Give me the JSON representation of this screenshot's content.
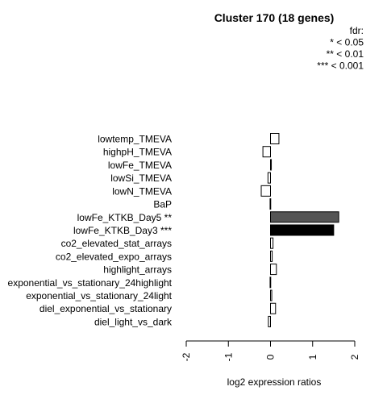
{
  "chart_data": {
    "type": "bar",
    "orientation": "horizontal",
    "title": "Cluster 170 (18 genes)",
    "xlabel": "log2 expression ratios",
    "ylabel": "",
    "xlim": [
      -2,
      2
    ],
    "xticks": [
      -2,
      -1,
      0,
      1,
      2
    ],
    "grid": false,
    "legend": {
      "placement": "top-right",
      "entries": [
        "fdr:",
        "* < 0.05",
        "** < 0.01",
        "*** < 0.001"
      ]
    },
    "categories": [
      "lowtemp_TMEVA",
      "highpH_TMEVA",
      "lowFe_TMEVA",
      "lowSi_TMEVA",
      "lowN_TMEVA",
      "BaP",
      "lowFe_KTKB_Day5 **",
      "lowFe_KTKB_Day3 ***",
      "co2_elevated_stat_arrays",
      "co2_elevated_expo_arrays",
      "highlight_arrays",
      "exponential_vs_stationary_24highlight",
      "exponential_vs_stationary_24light",
      "diel_exponential_vs_stationary",
      "diel_light_vs_dark"
    ],
    "values": [
      0.2,
      -0.18,
      0.02,
      -0.06,
      -0.22,
      -0.01,
      1.62,
      1.5,
      0.06,
      0.04,
      0.14,
      -0.01,
      0.03,
      0.12,
      -0.05
    ],
    "fill_colors": [
      "#ffffff",
      "#ffffff",
      "#ffffff",
      "#ffffff",
      "#ffffff",
      "#ffffff",
      "#555555",
      "#000000",
      "#ffffff",
      "#ffffff",
      "#ffffff",
      "#ffffff",
      "#ffffff",
      "#ffffff",
      "#ffffff"
    ]
  }
}
